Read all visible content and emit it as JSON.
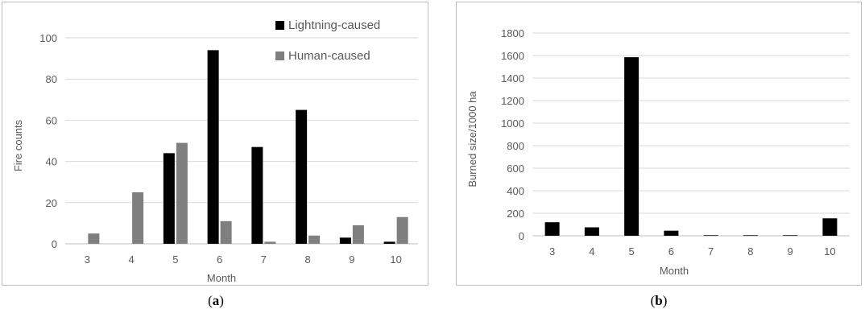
{
  "captions": {
    "a_prefix": "(",
    "a_letter": "a",
    "a_suffix": ")",
    "b_prefix": "(",
    "b_letter": "b",
    "b_suffix": ")"
  },
  "colors": {
    "lightning": "#000000",
    "human": "#7f7f7f",
    "grid": "#d9d9d9",
    "axis": "#bfbfbf",
    "text": "#595959"
  },
  "chart_data": [
    {
      "type": "bar",
      "categories": [
        "3",
        "4",
        "5",
        "6",
        "7",
        "8",
        "9",
        "10"
      ],
      "series": [
        {
          "name": "Lightning-caused",
          "values": [
            0,
            0,
            44,
            94,
            47,
            65,
            3,
            1
          ]
        },
        {
          "name": "Human-caused",
          "values": [
            5,
            25,
            49,
            11,
            1,
            4,
            9,
            13
          ]
        }
      ],
      "xlabel": "Month",
      "ylabel": "Fire counts",
      "ylim": [
        0,
        100
      ],
      "yticks": [
        "0",
        "20",
        "40",
        "60",
        "80",
        "100"
      ],
      "grid": true,
      "legend": "top-right"
    },
    {
      "type": "bar",
      "categories": [
        "3",
        "4",
        "5",
        "6",
        "7",
        "8",
        "9",
        "10"
      ],
      "series": [
        {
          "values": [
            120,
            75,
            1585,
            45,
            5,
            5,
            5,
            155
          ]
        }
      ],
      "xlabel": "Month",
      "ylabel": "Burned size/1000 ha",
      "ylim": [
        0,
        1800
      ],
      "yticks": [
        "0",
        "200",
        "400",
        "600",
        "800",
        "1000",
        "1200",
        "1400",
        "1600",
        "1800"
      ],
      "grid": true,
      "legend": "none"
    }
  ]
}
